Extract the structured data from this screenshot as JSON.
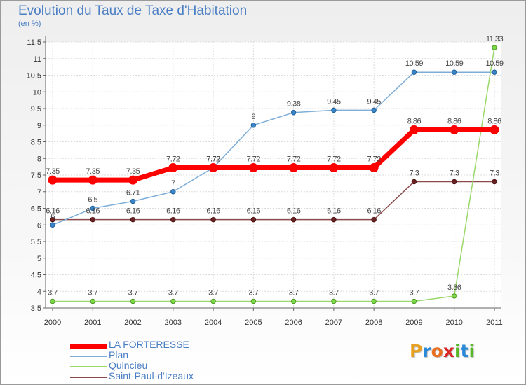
{
  "title": "Evolution du Taux de Taxe d'Habitation",
  "subtitle": "(en %)",
  "logo": {
    "letters": [
      "P",
      "r",
      "o",
      "x",
      "i",
      "t",
      "i"
    ],
    "colors": [
      "#e8a020",
      "#2a8ad8",
      "#e87020",
      "#d82828",
      "#58b828",
      "#2a8ad8",
      "#58b828"
    ]
  },
  "chart_data": {
    "type": "line",
    "title": "Evolution du Taux de Taxe d'Habitation",
    "ylabel": "(en %)",
    "x": [
      "2000",
      "2001",
      "2002",
      "2003",
      "2004",
      "2005",
      "2006",
      "2007",
      "2008",
      "2009",
      "2010",
      "2011"
    ],
    "ylim": [
      3.5,
      11.5
    ],
    "yticks": [
      "3.5",
      "4",
      "4.5",
      "5",
      "5.5",
      "6",
      "6.5",
      "7",
      "7.5",
      "8",
      "8.5",
      "9",
      "9.5",
      "10",
      "10.5",
      "11",
      "11.5"
    ],
    "grid": true,
    "legend_position": "bottom-left",
    "series": [
      {
        "name": "LA FORTERESSE",
        "color": "#ff0000",
        "values": [
          7.35,
          7.35,
          7.35,
          7.72,
          7.72,
          7.72,
          7.72,
          7.72,
          7.72,
          8.86,
          8.86,
          8.86
        ],
        "labels": [
          "7.35",
          "7.35",
          "7.35",
          "7.72",
          "7.72",
          "7.72",
          "7.72",
          "7.72",
          "7.72",
          "8.86",
          "8.86",
          "8.86"
        ]
      },
      {
        "name": "Plan",
        "color": "#7eaed8",
        "values": [
          6.0,
          6.5,
          6.71,
          7.0,
          7.72,
          9.0,
          9.38,
          9.45,
          9.45,
          10.59,
          10.59,
          10.59
        ],
        "labels": [
          "6",
          "6.5",
          "6.71",
          "7",
          "7.72",
          "9",
          "9.38",
          "9.45",
          "9.45",
          "10.59",
          "10.59",
          "10.59"
        ]
      },
      {
        "name": "Quincieu",
        "color": "#9ad86a",
        "values": [
          3.7,
          3.7,
          3.7,
          3.7,
          3.7,
          3.7,
          3.7,
          3.7,
          3.7,
          3.7,
          3.86,
          11.33
        ],
        "labels": [
          "3.7",
          "3.7",
          "3.7",
          "3.7",
          "3.7",
          "3.7",
          "3.7",
          "3.7",
          "3.7",
          "3.7",
          "3.86",
          "11.33"
        ]
      },
      {
        "name": "Saint-Paul-d'Izeaux",
        "color": "#8a4a4a",
        "values": [
          6.16,
          6.16,
          6.16,
          6.16,
          6.16,
          6.16,
          6.16,
          6.16,
          6.16,
          7.3,
          7.3,
          7.3
        ],
        "labels": [
          "6.16",
          "6.16",
          "6.16",
          "6.16",
          "6.16",
          "6.16",
          "6.16",
          "6.16",
          "6.16",
          "7.3",
          "7.3",
          "7.3"
        ]
      }
    ]
  }
}
